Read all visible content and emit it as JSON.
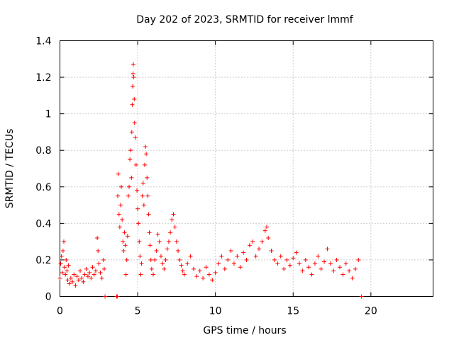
{
  "chart_data": {
    "type": "scatter",
    "title": "Day 202 of 2023, SRMTID for receiver lmmf",
    "xlabel": "GPS time / hours",
    "ylabel": "SRMTID / TECUs",
    "xlim": [
      0,
      24
    ],
    "ylim": [
      0,
      1.4
    ],
    "xticks": [
      0,
      5,
      10,
      15,
      20
    ],
    "xtick_labels": [
      "0",
      "5",
      "10",
      "15",
      "20"
    ],
    "yticks": [
      0,
      0.2,
      0.4,
      0.6,
      0.8,
      1.0,
      1.2,
      1.4
    ],
    "ytick_labels": [
      "0",
      "0.2",
      "0.4",
      "0.6",
      "0.8",
      "1",
      "1.2",
      "1.4"
    ],
    "grid": true,
    "marker": "+",
    "series": [
      {
        "name": "SRMTID",
        "color": "#ff0000",
        "points": [
          [
            0.0,
            0.1
          ],
          [
            0.05,
            0.18
          ],
          [
            0.1,
            0.22
          ],
          [
            0.15,
            0.13
          ],
          [
            0.2,
            0.25
          ],
          [
            0.25,
            0.3
          ],
          [
            0.3,
            0.16
          ],
          [
            0.35,
            0.12
          ],
          [
            0.4,
            0.2
          ],
          [
            0.45,
            0.14
          ],
          [
            0.5,
            0.09
          ],
          [
            0.55,
            0.17
          ],
          [
            0.6,
            0.07
          ],
          [
            0.7,
            0.1
          ],
          [
            0.8,
            0.08
          ],
          [
            0.9,
            0.12
          ],
          [
            1.0,
            0.06
          ],
          [
            1.1,
            0.11
          ],
          [
            1.2,
            0.09
          ],
          [
            1.3,
            0.14
          ],
          [
            1.4,
            0.1
          ],
          [
            1.5,
            0.08
          ],
          [
            1.6,
            0.12
          ],
          [
            1.7,
            0.15
          ],
          [
            1.8,
            0.11
          ],
          [
            1.9,
            0.13
          ],
          [
            2.0,
            0.1
          ],
          [
            2.1,
            0.16
          ],
          [
            2.2,
            0.12
          ],
          [
            2.3,
            0.14
          ],
          [
            2.4,
            0.32
          ],
          [
            2.45,
            0.25
          ],
          [
            2.5,
            0.18
          ],
          [
            2.6,
            0.13
          ],
          [
            2.7,
            0.1
          ],
          [
            2.8,
            0.2
          ],
          [
            2.85,
            0.15
          ],
          [
            2.9,
            0.0
          ],
          [
            3.65,
            0.0
          ],
          [
            3.7,
            0.0
          ],
          [
            3.72,
            0.55
          ],
          [
            3.75,
            0.67
          ],
          [
            3.8,
            0.45
          ],
          [
            3.85,
            0.38
          ],
          [
            3.9,
            0.5
          ],
          [
            3.95,
            0.6
          ],
          [
            4.0,
            0.42
          ],
          [
            4.05,
            0.3
          ],
          [
            4.1,
            0.25
          ],
          [
            4.15,
            0.35
          ],
          [
            4.2,
            0.28
          ],
          [
            4.25,
            0.12
          ],
          [
            4.3,
            0.2
          ],
          [
            4.35,
            0.33
          ],
          [
            4.4,
            0.55
          ],
          [
            4.45,
            0.6
          ],
          [
            4.5,
            0.75
          ],
          [
            4.55,
            0.8
          ],
          [
            4.6,
            0.65
          ],
          [
            4.62,
            0.9
          ],
          [
            4.65,
            1.05
          ],
          [
            4.68,
            1.15
          ],
          [
            4.7,
            1.22
          ],
          [
            4.72,
            1.27
          ],
          [
            4.75,
            1.2
          ],
          [
            4.78,
            1.08
          ],
          [
            4.8,
            0.95
          ],
          [
            4.85,
            0.87
          ],
          [
            4.9,
            0.72
          ],
          [
            4.95,
            0.58
          ],
          [
            5.0,
            0.48
          ],
          [
            5.05,
            0.4
          ],
          [
            5.1,
            0.3
          ],
          [
            5.15,
            0.22
          ],
          [
            5.2,
            0.12
          ],
          [
            5.25,
            0.18
          ],
          [
            5.3,
            0.55
          ],
          [
            5.35,
            0.62
          ],
          [
            5.4,
            0.5
          ],
          [
            5.45,
            0.72
          ],
          [
            5.5,
            0.82
          ],
          [
            5.55,
            0.78
          ],
          [
            5.6,
            0.65
          ],
          [
            5.65,
            0.55
          ],
          [
            5.7,
            0.45
          ],
          [
            5.75,
            0.35
          ],
          [
            5.8,
            0.28
          ],
          [
            5.85,
            0.2
          ],
          [
            5.9,
            0.15
          ],
          [
            6.0,
            0.12
          ],
          [
            6.1,
            0.2
          ],
          [
            6.2,
            0.25
          ],
          [
            6.3,
            0.34
          ],
          [
            6.4,
            0.3
          ],
          [
            6.5,
            0.22
          ],
          [
            6.6,
            0.18
          ],
          [
            6.7,
            0.15
          ],
          [
            6.8,
            0.2
          ],
          [
            6.9,
            0.26
          ],
          [
            7.0,
            0.3
          ],
          [
            7.1,
            0.35
          ],
          [
            7.2,
            0.42
          ],
          [
            7.3,
            0.45
          ],
          [
            7.4,
            0.38
          ],
          [
            7.5,
            0.3
          ],
          [
            7.6,
            0.25
          ],
          [
            7.7,
            0.2
          ],
          [
            7.8,
            0.17
          ],
          [
            7.9,
            0.14
          ],
          [
            8.0,
            0.12
          ],
          [
            8.2,
            0.18
          ],
          [
            8.4,
            0.22
          ],
          [
            8.6,
            0.15
          ],
          [
            8.8,
            0.11
          ],
          [
            9.0,
            0.14
          ],
          [
            9.2,
            0.1
          ],
          [
            9.4,
            0.16
          ],
          [
            9.6,
            0.12
          ],
          [
            9.8,
            0.09
          ],
          [
            10.0,
            0.13
          ],
          [
            10.2,
            0.18
          ],
          [
            10.4,
            0.22
          ],
          [
            10.6,
            0.15
          ],
          [
            10.8,
            0.2
          ],
          [
            11.0,
            0.25
          ],
          [
            11.2,
            0.18
          ],
          [
            11.4,
            0.22
          ],
          [
            11.6,
            0.16
          ],
          [
            11.8,
            0.24
          ],
          [
            12.0,
            0.2
          ],
          [
            12.2,
            0.28
          ],
          [
            12.4,
            0.3
          ],
          [
            12.6,
            0.22
          ],
          [
            12.8,
            0.26
          ],
          [
            13.0,
            0.3
          ],
          [
            13.2,
            0.36
          ],
          [
            13.3,
            0.38
          ],
          [
            13.4,
            0.32
          ],
          [
            13.6,
            0.25
          ],
          [
            13.8,
            0.2
          ],
          [
            14.0,
            0.18
          ],
          [
            14.2,
            0.22
          ],
          [
            14.4,
            0.15
          ],
          [
            14.6,
            0.2
          ],
          [
            14.8,
            0.17
          ],
          [
            15.0,
            0.21
          ],
          [
            15.2,
            0.24
          ],
          [
            15.4,
            0.18
          ],
          [
            15.6,
            0.14
          ],
          [
            15.8,
            0.2
          ],
          [
            16.0,
            0.16
          ],
          [
            16.2,
            0.12
          ],
          [
            16.4,
            0.18
          ],
          [
            16.6,
            0.22
          ],
          [
            16.8,
            0.15
          ],
          [
            17.0,
            0.19
          ],
          [
            17.2,
            0.26
          ],
          [
            17.4,
            0.18
          ],
          [
            17.6,
            0.14
          ],
          [
            17.8,
            0.2
          ],
          [
            18.0,
            0.16
          ],
          [
            18.2,
            0.12
          ],
          [
            18.4,
            0.18
          ],
          [
            18.6,
            0.14
          ],
          [
            18.8,
            0.1
          ],
          [
            19.0,
            0.15
          ],
          [
            19.2,
            0.2
          ],
          [
            19.4,
            0.0
          ]
        ]
      }
    ]
  }
}
